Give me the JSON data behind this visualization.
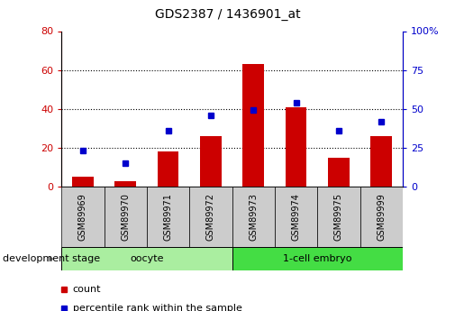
{
  "title": "GDS2387 / 1436901_at",
  "samples": [
    "GSM89969",
    "GSM89970",
    "GSM89971",
    "GSM89972",
    "GSM89973",
    "GSM89974",
    "GSM89975",
    "GSM89999"
  ],
  "counts": [
    5,
    3,
    18,
    26,
    63,
    41,
    15,
    26
  ],
  "percentiles": [
    23,
    15,
    36,
    46,
    49,
    54,
    36,
    42
  ],
  "groups": [
    {
      "label": "oocyte",
      "start": 0,
      "end": 4,
      "color": "#aaeea0"
    },
    {
      "label": "1-cell embryo",
      "start": 4,
      "end": 8,
      "color": "#44dd44"
    }
  ],
  "bar_color": "#cc0000",
  "dot_color": "#0000cc",
  "left_ylim": [
    0,
    80
  ],
  "right_ylim": [
    0,
    100
  ],
  "left_yticks": [
    0,
    20,
    40,
    60,
    80
  ],
  "right_yticks": [
    0,
    25,
    50,
    75,
    100
  ],
  "right_ytick_labels": [
    "0",
    "25",
    "50",
    "75",
    "100%"
  ],
  "grid_values": [
    20,
    40,
    60
  ],
  "background_color": "#ffffff",
  "plot_bg_color": "#ffffff",
  "tick_label_area_color": "#cccccc",
  "legend_count_label": "count",
  "legend_pct_label": "percentile rank within the sample"
}
